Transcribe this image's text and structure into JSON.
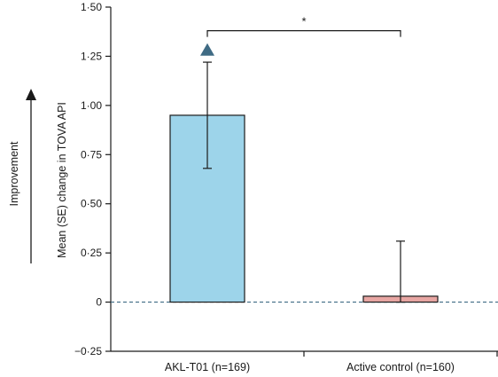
{
  "chart_data": {
    "type": "bar",
    "title": "",
    "xlabel": "",
    "ylabel": "Mean (SE) change in TOVA API",
    "direction_label": "Improvement",
    "ylim": [
      -0.25,
      1.5
    ],
    "yticks": [
      1.5,
      1.25,
      1.0,
      0.75,
      0.5,
      0.25,
      0,
      -0.25
    ],
    "ytick_labels": [
      "1·50",
      "1·25",
      "1·00",
      "0·75",
      "0·50",
      "0·25",
      "0",
      "−0·25"
    ],
    "categories": [
      "AKL-T01 (n=169)",
      "Active control (n=160)"
    ],
    "values": [
      0.95,
      0.03
    ],
    "error_bars": [
      {
        "lower": 0.68,
        "upper": 1.22
      },
      {
        "lower": 0.0,
        "upper": 0.31
      }
    ],
    "bar_colors": [
      "#9dd4ea",
      "#e8a6a3"
    ],
    "significance": {
      "between": [
        0,
        1
      ],
      "y": 1.38,
      "label": "*"
    },
    "marker": {
      "category": 0,
      "y": 1.28,
      "shape": "triangle",
      "color": "#3f6b84"
    },
    "zero_line": {
      "style": "dashed",
      "color": "#3f6b84"
    },
    "grid": false,
    "legend": "none"
  }
}
